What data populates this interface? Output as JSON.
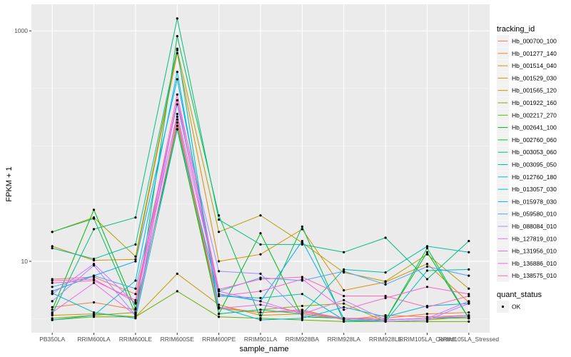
{
  "chart_data": {
    "type": "line",
    "xlabel": "sample_name",
    "ylabel": "FPKM + 1",
    "y_scale": "log10",
    "ylim": [
      2.4,
      1700
    ],
    "y_ticks": [
      10,
      1000
    ],
    "y_tick_labels": [
      "10",
      "1000"
    ],
    "grid": true,
    "legend_position": "right",
    "categories": [
      "PB350LA",
      "RRIM600LA",
      "RRIM600LE",
      "RRIM600SE",
      "RRIM600PE",
      "RRIM901LA",
      "RRIM928BA",
      "RRIM928LA",
      "RRIM928LE",
      "RRIM105LA_Control",
      "RRIM105LA_Stressed"
    ],
    "legend_title": "tracking_id",
    "series": [
      {
        "name": "Hb_000700_100",
        "color": "#F8766D",
        "values": [
          7.0,
          7.3,
          5.2,
          180,
          4.0,
          3.6,
          3.8,
          3.1,
          3.4,
          3.3,
          3.4
        ]
      },
      {
        "name": "Hb_001277_140",
        "color": "#EC8239",
        "values": [
          4.0,
          4.4,
          3.8,
          150,
          3.9,
          3.6,
          3.7,
          3.2,
          3.2,
          3.5,
          3.6
        ]
      },
      {
        "name": "Hb_001514_040",
        "color": "#DB8E00",
        "values": [
          13.5,
          10.2,
          10.4,
          640,
          10.0,
          11.5,
          19.0,
          5.6,
          6.6,
          9.5,
          4.4
        ]
      },
      {
        "name": "Hb_001529_030",
        "color": "#C79800",
        "values": [
          3.4,
          3.5,
          3.3,
          7.8,
          4.2,
          3.4,
          3.5,
          3.2,
          3.1,
          3.2,
          3.2
        ]
      },
      {
        "name": "Hb_001565_120",
        "color": "#AEA200",
        "values": [
          18.0,
          24.0,
          11.0,
          680,
          18.0,
          25.0,
          14.5,
          8.0,
          6.7,
          11.5,
          5.8
        ]
      },
      {
        "name": "Hb_001922_160",
        "color": "#8FAA00",
        "values": [
          3.2,
          3.4,
          3.6,
          160,
          3.5,
          3.8,
          4.1,
          4.3,
          3.0,
          3.1,
          3.3
        ]
      },
      {
        "name": "Hb_002217_270",
        "color": "#64B200",
        "values": [
          3.1,
          3.3,
          3.3,
          5.5,
          3.3,
          3.2,
          3.1,
          3.0,
          3.0,
          3.0,
          3.0
        ]
      },
      {
        "name": "Hb_002641_100",
        "color": "#00B712",
        "values": [
          3.8,
          28.0,
          3.9,
          140,
          3.5,
          17.5,
          3.3,
          3.2,
          3.1,
          12.0,
          3.2
        ]
      },
      {
        "name": "Hb_002760_060",
        "color": "#00BC56",
        "values": [
          18.0,
          23.5,
          3.5,
          900,
          25.0,
          3.2,
          20.0,
          3.0,
          3.1,
          13.0,
          3.2
        ]
      },
      {
        "name": "Hb_003053_060",
        "color": "#00BF7D",
        "values": [
          3.5,
          19.0,
          24.0,
          1280,
          23.0,
          14.0,
          14.0,
          12.0,
          16.0,
          7.0,
          15.0
        ]
      },
      {
        "name": "Hb_003095_050",
        "color": "#00C0A0",
        "values": [
          13.0,
          10.5,
          14.0,
          700,
          3.5,
          3.8,
          3.5,
          8.5,
          8.0,
          13.5,
          12.0
        ]
      },
      {
        "name": "Hb_012760_180",
        "color": "#00BEC0",
        "values": [
          5.3,
          3.6,
          3.2,
          140,
          5.0,
          4.8,
          5.2,
          3.1,
          3.0,
          8.3,
          8.5
        ]
      },
      {
        "name": "Hb_013057_030",
        "color": "#00B8DB",
        "values": [
          3.1,
          3.4,
          6.8,
          440,
          4.0,
          3.1,
          3.2,
          4.0,
          3.3,
          4.1,
          4.3
        ]
      },
      {
        "name": "Hb_015978_030",
        "color": "#00AEF2",
        "values": [
          5.5,
          7.5,
          10.0,
          380,
          5.2,
          4.5,
          15.0,
          3.2,
          3.1,
          3.2,
          3.3
        ]
      },
      {
        "name": "Hb_059580_010",
        "color": "#4CA2FF",
        "values": [
          6.0,
          7.5,
          5.8,
          230,
          5.5,
          7.2,
          6.8,
          8.2,
          6.3,
          9.0,
          7.5
        ]
      },
      {
        "name": "Hb_088084_010",
        "color": "#A58AFF",
        "values": [
          4.5,
          9.2,
          3.4,
          250,
          8.2,
          7.8,
          3.4,
          3.2,
          3.0,
          3.1,
          4.3
        ]
      },
      {
        "name": "Hb_127819_010",
        "color": "#D175FE",
        "values": [
          5.2,
          9.5,
          4.3,
          190,
          5.5,
          4.5,
          3.5,
          4.6,
          3.1,
          3.2,
          4.5
        ]
      },
      {
        "name": "Hb_131956_010",
        "color": "#EB66EE",
        "values": [
          3.6,
          6.5,
          3.4,
          170,
          3.9,
          4.2,
          3.6,
          3.2,
          3.1,
          3.2,
          3.4
        ]
      },
      {
        "name": "Hb_136886_010",
        "color": "#FA60D6",
        "values": [
          6.8,
          7.0,
          4.4,
          250,
          5.0,
          5.5,
          7.0,
          3.8,
          4.8,
          6.0,
          5.2
        ]
      },
      {
        "name": "Hb_138575_010",
        "color": "#FF64B5",
        "values": [
          6.5,
          6.8,
          4.6,
          280,
          5.7,
          7.0,
          7.3,
          5.0,
          5.0,
          4.0,
          5.0
        ]
      }
    ],
    "legend2_title": "quant_status",
    "legend2_items": [
      "OK"
    ]
  }
}
